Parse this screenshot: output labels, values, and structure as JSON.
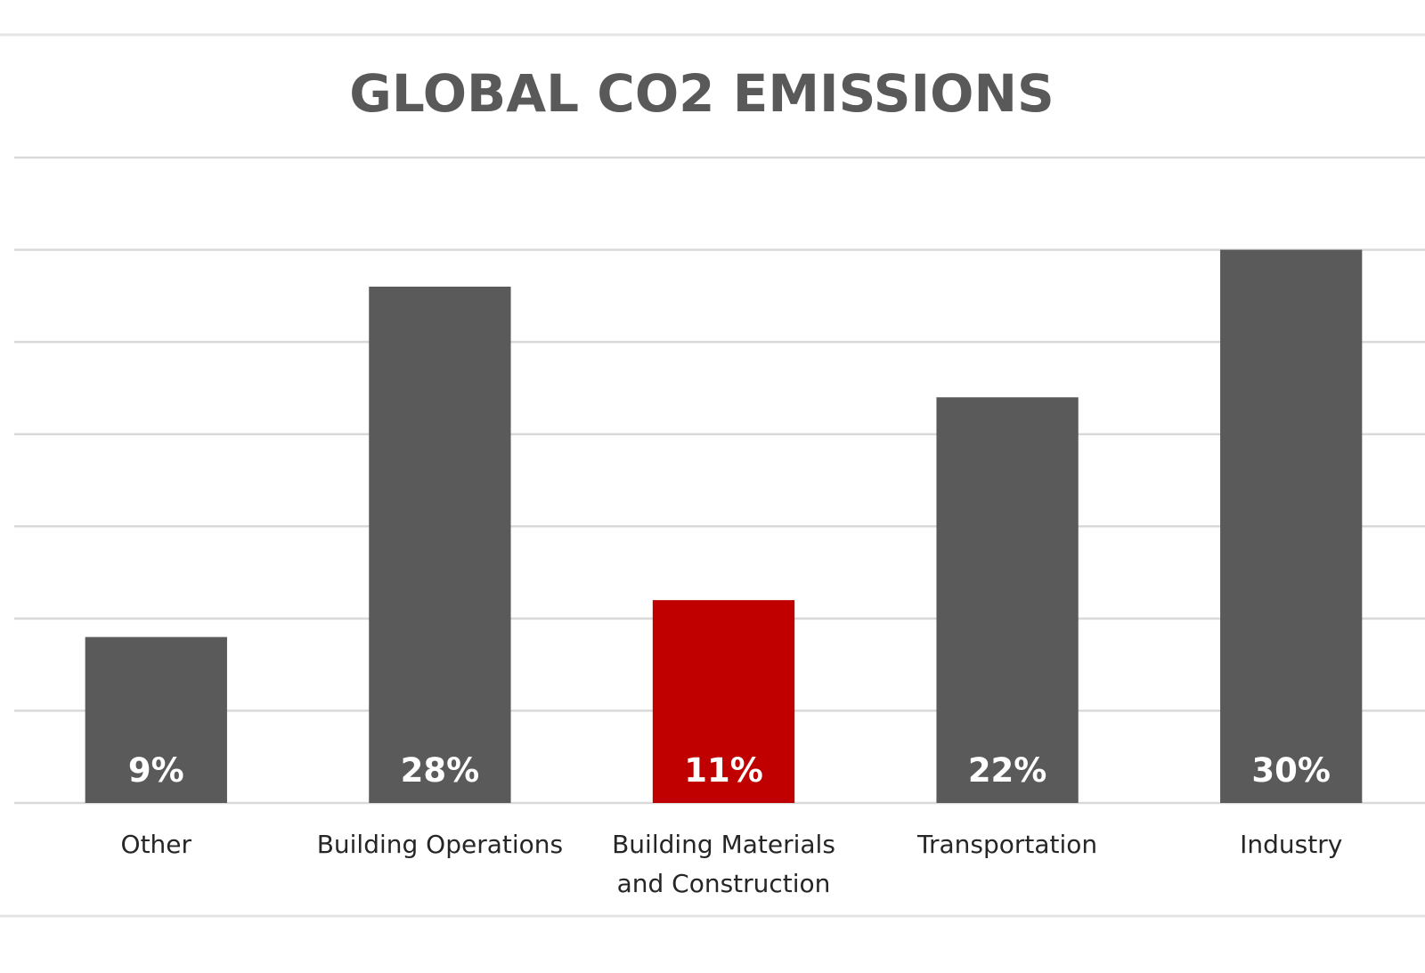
{
  "chart_data": {
    "type": "bar",
    "title": "GLOBAL CO2 EMISSIONS",
    "categories": [
      [
        "Other"
      ],
      [
        "Building Operations"
      ],
      [
        "Building Materials",
        "and Construction"
      ],
      [
        "Transportation"
      ],
      [
        "Industry"
      ]
    ],
    "values": [
      9,
      28,
      11,
      22,
      30
    ],
    "data_labels": [
      "9%",
      "28%",
      "11%",
      "22%",
      "30%"
    ],
    "ylim": [
      0,
      35
    ],
    "ytick_step": 5,
    "grid": true,
    "legend": "none",
    "colors": {
      "default_bar": "#5a5a5a",
      "highlight_bar": "#c00000",
      "grid": "#d9d9d9"
    },
    "highlight_index": 2
  }
}
